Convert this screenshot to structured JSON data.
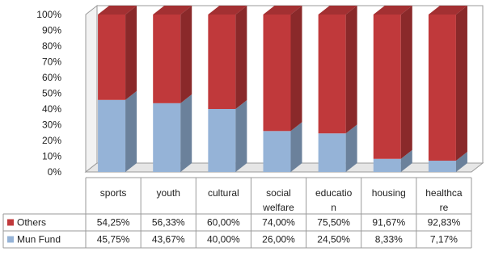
{
  "chart_data": {
    "type": "bar",
    "stacked": true,
    "percent_stacked": true,
    "three_d": true,
    "categories": [
      [
        "sports"
      ],
      [
        "youth"
      ],
      [
        "cultural"
      ],
      [
        "social",
        "welfare"
      ],
      [
        "educatio",
        "n"
      ],
      [
        "housing"
      ],
      [
        "healthca",
        "re"
      ]
    ],
    "series": [
      {
        "name": "Mun Fund",
        "color": "#95b3d7",
        "values": [
          45.75,
          43.67,
          40.0,
          26.0,
          24.5,
          8.33,
          7.17
        ],
        "labels": [
          "45,75%",
          "43,67%",
          "40,00%",
          "26,00%",
          "24,50%",
          "8,33%",
          "7,17%"
        ]
      },
      {
        "name": "Others",
        "color": "#c0393b",
        "values": [
          54.25,
          56.33,
          60.0,
          74.0,
          75.5,
          91.67,
          92.83
        ],
        "labels": [
          "54,25%",
          "56,33%",
          "60,00%",
          "74,00%",
          "75,50%",
          "91,67%",
          "92,83%"
        ]
      }
    ],
    "y_ticks": [
      "0%",
      "10%",
      "20%",
      "30%",
      "40%",
      "50%",
      "60%",
      "70%",
      "80%",
      "90%",
      "100%"
    ],
    "ylim": [
      0,
      100
    ],
    "grid": false,
    "legend": "data-table"
  }
}
